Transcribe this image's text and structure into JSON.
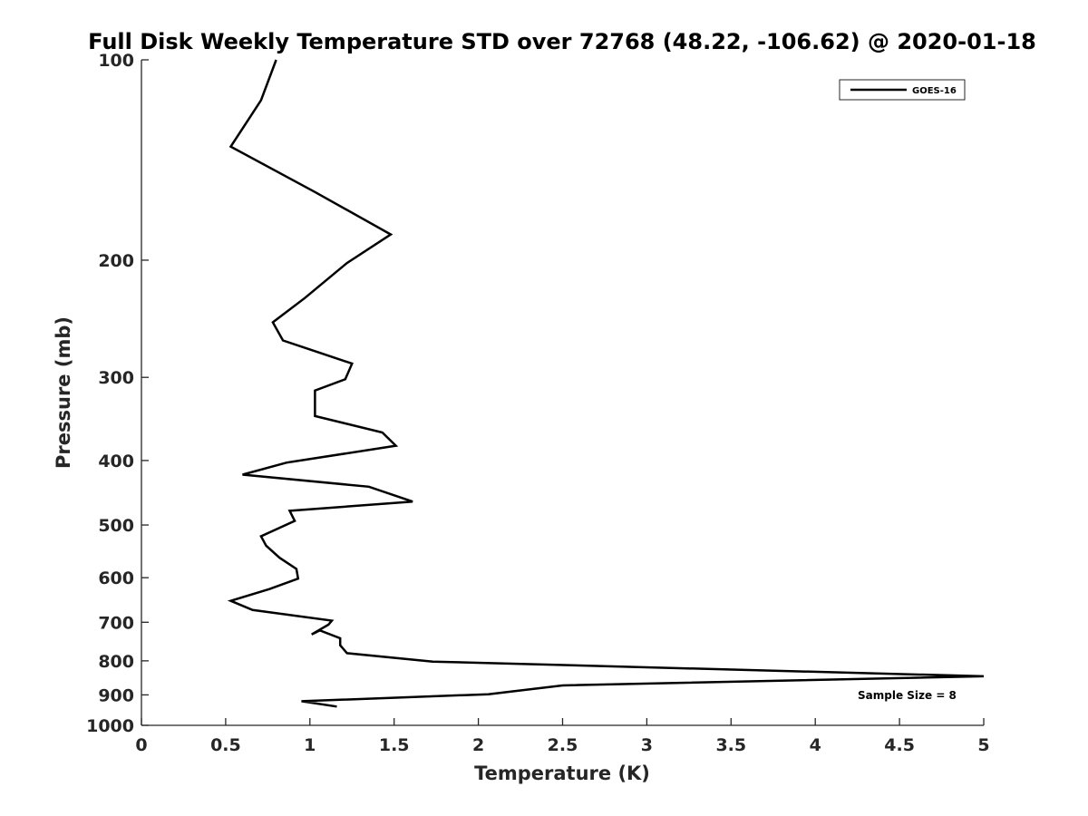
{
  "chart_data": {
    "type": "line",
    "title": "Full Disk Weekly Temperature STD over 72768 (48.22, -106.62) @ 2020-01-18",
    "xlabel": "Temperature (K)",
    "ylabel": "Pressure (mb)",
    "xlim": [
      0,
      5
    ],
    "ylim": [
      1000,
      100
    ],
    "yscale": "log",
    "y_reversed": true,
    "x_ticks": [
      "0",
      "0.5",
      "1",
      "1.5",
      "2",
      "2.5",
      "3",
      "3.5",
      "4",
      "4.5",
      "5"
    ],
    "y_ticks": [
      "100",
      "200",
      "300",
      "400",
      "500",
      "600",
      "700",
      "800",
      "900",
      "1000"
    ],
    "grid": false,
    "legend": {
      "position": "top-right",
      "entries": [
        "GOES-16"
      ]
    },
    "annotation": "Sample Size = 8",
    "series": [
      {
        "name": "GOES-16",
        "color": "#000000",
        "points": [
          [
            0.8,
            100
          ],
          [
            0.71,
            115
          ],
          [
            0.53,
            135
          ],
          [
            1.03,
            158
          ],
          [
            1.48,
            183
          ],
          [
            1.22,
            202
          ],
          [
            0.97,
            228
          ],
          [
            0.78,
            248
          ],
          [
            0.84,
            264
          ],
          [
            1.25,
            286
          ],
          [
            1.21,
            302
          ],
          [
            1.03,
            314
          ],
          [
            1.03,
            343
          ],
          [
            1.43,
            363
          ],
          [
            1.51,
            380
          ],
          [
            0.86,
            403
          ],
          [
            0.6,
            420
          ],
          [
            1.35,
            438
          ],
          [
            1.61,
            461
          ],
          [
            0.88,
            476
          ],
          [
            0.91,
            493
          ],
          [
            0.71,
            520
          ],
          [
            0.74,
            537
          ],
          [
            0.82,
            560
          ],
          [
            0.92,
            582
          ],
          [
            0.93,
            602
          ],
          [
            0.76,
            624
          ],
          [
            0.53,
            650
          ],
          [
            0.66,
            671
          ],
          [
            1.13,
            696
          ],
          [
            1.11,
            706
          ],
          [
            1.01,
            730
          ],
          [
            1.06,
            720
          ],
          [
            1.18,
            740
          ],
          [
            1.18,
            758
          ],
          [
            1.22,
            779
          ],
          [
            1.73,
            802
          ],
          [
            5.0,
            844
          ],
          [
            2.5,
            871
          ],
          [
            2.06,
            898
          ],
          [
            0.95,
            920
          ],
          [
            1.16,
            937
          ]
        ]
      }
    ]
  }
}
